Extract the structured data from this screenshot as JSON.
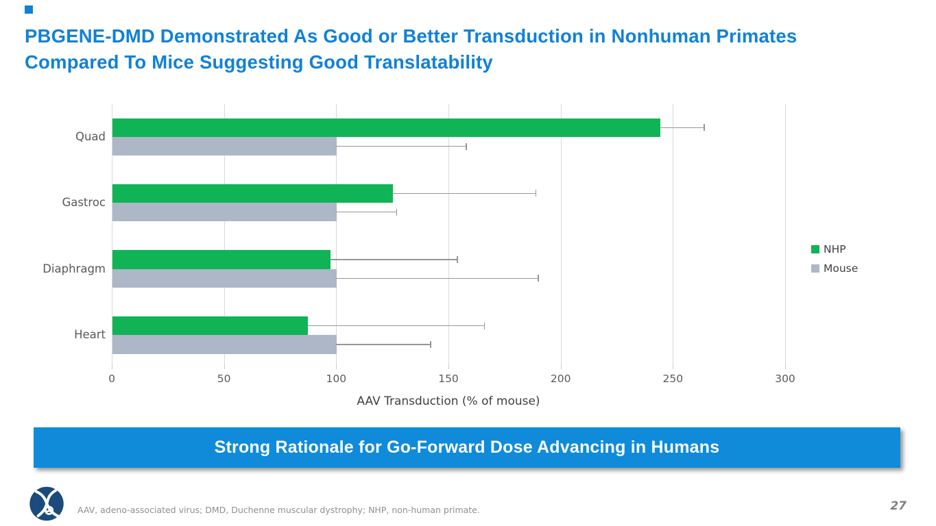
{
  "slide": {
    "title": "PBGENE-DMD Demonstrated As Good or Better Transduction in Nonhuman Primates Compared To Mice Suggesting Good Translatability",
    "banner": "Strong Rationale for Go-Forward Dose Advancing in Humans",
    "footnote": "AAV, adeno-associated virus; DMD, Duchenne muscular dystrophy; NHP, non-human primate.",
    "page_number": "27",
    "logo": "precision-biosciences-logo"
  },
  "colors": {
    "title_blue": "#1181d6",
    "banner_blue": "#0f8bda",
    "nhp_green": "#10b456",
    "mouse_gray": "#adb7c7",
    "gridline": "#d9d9d9",
    "axis_text": "#595959",
    "error_bar": "#969696",
    "logo_navy": "#1a4b7c"
  },
  "chart_data": {
    "type": "bar",
    "orientation": "horizontal",
    "title": "",
    "categories": [
      "Quad",
      "Gastroc",
      "Diaphragm",
      "Heart"
    ],
    "series": [
      {
        "name": "NHP",
        "color": "#10b456",
        "values": [
          244,
          125,
          97,
          87
        ],
        "error_high": [
          264,
          189,
          154,
          166
        ]
      },
      {
        "name": "Mouse",
        "color": "#adb7c7",
        "values": [
          100,
          100,
          100,
          100
        ],
        "error_high": [
          158,
          127,
          190,
          142
        ]
      }
    ],
    "xlabel": "AAV Transduction (% of mouse)",
    "ylabel": "",
    "xlim": [
      0,
      300
    ],
    "xticks": [
      0,
      50,
      100,
      150,
      200,
      250,
      300
    ],
    "grid": true,
    "legend_position": "right",
    "error_bars": "positive-only"
  }
}
